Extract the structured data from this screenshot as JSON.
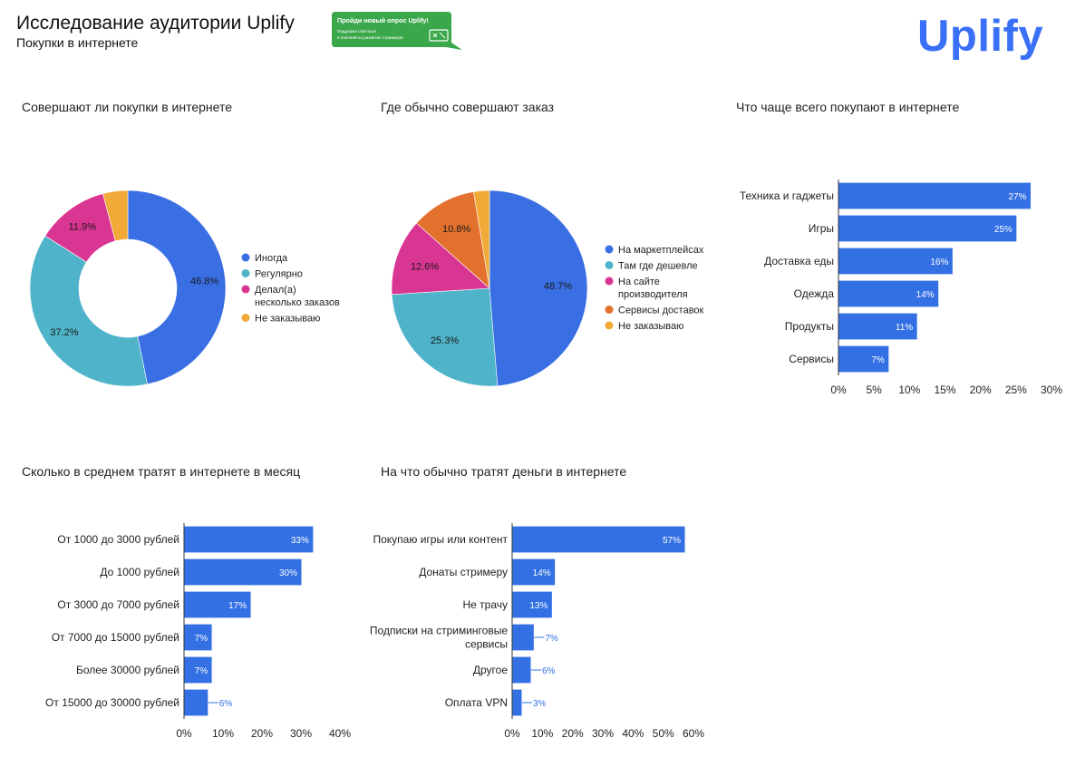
{
  "header": {
    "title": "Исследование аудитории Uplify",
    "subtitle": "Покупки в интернете",
    "logo_text": "Uplify",
    "banner": {
      "line1": "Пройди новый опрос Uplify!",
      "line2": "Поддержи Uбетлате",
      "line3": "и повлияй на развитие стримеров"
    }
  },
  "colors": {
    "blue": "#3a6fe4",
    "teal": "#4fb3c9",
    "pink": "#d93592",
    "orange": "#e2712e",
    "yellow": "#f1aa38",
    "bar": "#3370e3",
    "green": "#3aa84a"
  },
  "chart_data": [
    {
      "id": "c1",
      "type": "pie",
      "donut": true,
      "title": "Совершают ли покупки в интернете",
      "categories": [
        "Иногда",
        "Регулярно",
        "Делал(а) несколько заказов",
        "Не заказываю"
      ],
      "legend_labels": [
        [
          "Иногда"
        ],
        [
          "Регулярно"
        ],
        [
          "Делал(а)",
          "несколько заказов"
        ],
        [
          "Не заказываю"
        ]
      ],
      "values": [
        46.8,
        37.2,
        11.9,
        4.1
      ],
      "value_labels": [
        "46.8%",
        "37.2%",
        "11.9%",
        ""
      ],
      "colors": [
        "#3a6fe4",
        "#4fb3c9",
        "#d93592",
        "#f1aa38"
      ],
      "legend": "right"
    },
    {
      "id": "c2",
      "type": "pie",
      "donut": false,
      "title": "Где обычно совершают заказ",
      "categories": [
        "На маркетплейсах",
        "Там где дешевле",
        "На сайте производителя",
        "Сервисы доставок",
        "Не заказываю"
      ],
      "legend_labels": [
        [
          "На маркетплейсах"
        ],
        [
          "Там где дешевле"
        ],
        [
          "На сайте",
          "производителя"
        ],
        [
          "Сервисы доставок"
        ],
        [
          "Не заказываю"
        ]
      ],
      "values": [
        48.7,
        25.3,
        12.6,
        10.8,
        2.6
      ],
      "value_labels": [
        "48.7%",
        "25.3%",
        "12.6%",
        "10.8%",
        ""
      ],
      "colors": [
        "#3a6fe4",
        "#4fb3c9",
        "#d93592",
        "#e2712e",
        "#f1aa38"
      ],
      "legend": "right"
    },
    {
      "id": "c3",
      "type": "bar",
      "orientation": "horizontal",
      "title": "Что чаще всего покупают в интернете",
      "categories": [
        [
          "Техника и гаджеты"
        ],
        [
          "Игры"
        ],
        [
          "Доставка еды"
        ],
        [
          "Одежда"
        ],
        [
          "Продукты"
        ],
        [
          "Сервисы"
        ]
      ],
      "values": [
        27,
        25,
        16,
        14,
        11,
        7
      ],
      "value_labels": [
        "27%",
        "25%",
        "16%",
        "14%",
        "11%",
        "7%"
      ],
      "xlim": [
        0,
        30
      ],
      "ticks": [
        "0%",
        "5%",
        "10%",
        "15%",
        "20%",
        "25%",
        "30%"
      ]
    },
    {
      "id": "c4",
      "type": "bar",
      "orientation": "horizontal",
      "title": "Сколько в среднем тратят в интернете в месяц",
      "categories": [
        [
          "От 1000 до 3000 рублей"
        ],
        [
          "До 1000 рублей"
        ],
        [
          "От 3000 до 7000 рублей"
        ],
        [
          "От 7000 до 15000 рублей"
        ],
        [
          "Более 30000 рублей"
        ],
        [
          "От 15000 до 30000 рублей"
        ]
      ],
      "values": [
        33,
        30,
        17,
        7,
        7,
        6
      ],
      "value_labels": [
        "33%",
        "30%",
        "17%",
        "7%",
        "7%",
        "6%"
      ],
      "xlim": [
        0,
        40
      ],
      "ticks": [
        "0%",
        "10%",
        "20%",
        "30%",
        "40%"
      ]
    },
    {
      "id": "c5",
      "type": "bar",
      "orientation": "horizontal",
      "title": "На что обычно тратят деньги в интернете",
      "categories": [
        [
          "Покупаю игры или контент"
        ],
        [
          "Донаты стримеру"
        ],
        [
          "Не трачу"
        ],
        [
          "Подписки на стриминговые",
          "сервисы"
        ],
        [
          "Другое"
        ],
        [
          "Оплата VPN"
        ]
      ],
      "values": [
        57,
        14,
        13,
        7,
        6,
        3
      ],
      "value_labels": [
        "57%",
        "14%",
        "13%",
        "7%",
        "6%",
        "3%"
      ],
      "xlim": [
        0,
        60
      ],
      "ticks": [
        "0%",
        "10%",
        "20%",
        "30%",
        "40%",
        "50%",
        "60%"
      ]
    }
  ]
}
